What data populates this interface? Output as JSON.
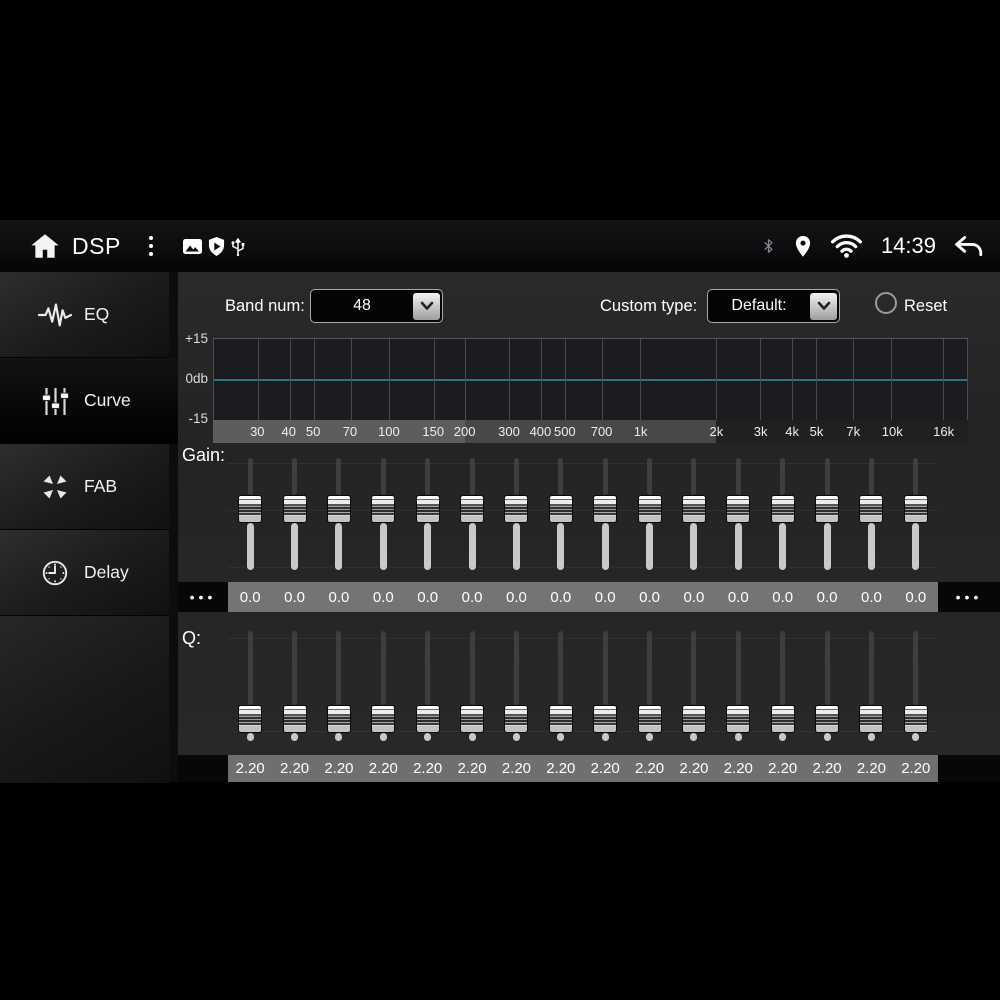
{
  "header": {
    "title": "DSP",
    "time": "14:39",
    "left_icons": [
      "home-icon",
      "overflow-menu-icon",
      "gallery-icon",
      "play-protect-icon",
      "usb-icon"
    ],
    "right_icons": [
      "bluetooth-icon",
      "location-icon",
      "wifi-icon",
      "back-icon"
    ]
  },
  "sidebar": {
    "items": [
      {
        "label": "EQ",
        "icon": "eq-waveform-icon",
        "active": false
      },
      {
        "label": "Curve",
        "icon": "curve-sliders-icon",
        "active": true
      },
      {
        "label": "FAB",
        "icon": "fab-arrows-icon",
        "active": false
      },
      {
        "label": "Delay",
        "icon": "delay-clock-icon",
        "active": false
      }
    ]
  },
  "controls": {
    "band_num_label": "Band num:",
    "band_num_value": "48",
    "custom_type_label": "Custom type:",
    "custom_type_value": "Default:",
    "reset_label": "Reset"
  },
  "graph": {
    "type": "line",
    "y_axis": {
      "labels": [
        "+15",
        "0db",
        "-15"
      ],
      "min": -15,
      "max": 15
    },
    "x_axis": {
      "scale": "log",
      "min": 20,
      "max": 20000,
      "tick_labels": [
        "30",
        "40",
        "50",
        "70",
        "100",
        "150",
        "200",
        "300",
        "400",
        "500",
        "700",
        "1k",
        "2k",
        "3k",
        "4k",
        "5k",
        "7k",
        "10k",
        "16k"
      ],
      "tick_values": [
        30,
        40,
        50,
        70,
        100,
        150,
        200,
        300,
        400,
        500,
        700,
        1000,
        2000,
        3000,
        4000,
        5000,
        7000,
        10000,
        16000
      ]
    },
    "curve_db": 0,
    "colors": {
      "curve": "#2b7486",
      "grid": "#4a4a4e",
      "page_segments": [
        "#5d5d5d",
        "#484848",
        "#202020"
      ]
    }
  },
  "eq": {
    "gain_label": "Gain:",
    "q_label": "Q:",
    "more_indicator": "•••",
    "gain_values": [
      "0.0",
      "0.0",
      "0.0",
      "0.0",
      "0.0",
      "0.0",
      "0.0",
      "0.0",
      "0.0",
      "0.0",
      "0.0",
      "0.0",
      "0.0",
      "0.0",
      "0.0",
      "0.0"
    ],
    "q_values": [
      "2.20",
      "2.20",
      "2.20",
      "2.20",
      "2.20",
      "2.20",
      "2.20",
      "2.20",
      "2.20",
      "2.20",
      "2.20",
      "2.20",
      "2.20",
      "2.20",
      "2.20",
      "2.20"
    ]
  }
}
